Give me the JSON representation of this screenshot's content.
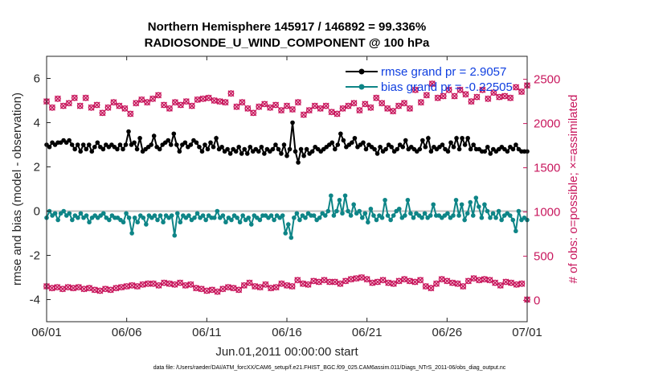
{
  "chart_data": {
    "type": "line",
    "title_line1": "Northern Hemisphere 145917 / 146892 = 99.336%",
    "title_line2": "RADIOSONDE_U_WIND_COMPONENT @ 100 hPa",
    "xlabel": "Jun.01,2011 00:00:00 start",
    "ylabel_left": "rmse and bias (model - observation)",
    "ylabel_right": "# of obs: o=possible; ×=assimilated",
    "footer": "data file: /Users/raeder/DAI/ATM_forcXX/CAM6_setup/f.e21.FHIST_BGC.f09_025.CAM6assim.011/Diags_NTrS_2011-06/obs_diag_output.nc",
    "x_ticks": [
      "06/01",
      "06/06",
      "06/11",
      "06/16",
      "06/21",
      "06/26",
      "07/01"
    ],
    "y_left_ticks": [
      "-4",
      "-2",
      "0",
      "2",
      "4",
      "6"
    ],
    "y_right_ticks": [
      "0",
      "500",
      "1000",
      "1500",
      "2000",
      "2500"
    ],
    "xlim_days": [
      0,
      30
    ],
    "ylim_left": [
      -5,
      7
    ],
    "ylim_right": [
      -240,
      2760
    ],
    "zero_line": 0,
    "series": [
      {
        "name": "rmse",
        "legend": "rmse grand pr = 2.9057",
        "color": "#000000",
        "axis": "left",
        "values": [
          3.0,
          2.9,
          3.1,
          3.0,
          3.1,
          3.1,
          3.2,
          3.1,
          3.2,
          3.0,
          2.8,
          3.0,
          2.7,
          3.0,
          2.8,
          3.0,
          2.7,
          2.9,
          3.1,
          2.9,
          2.8,
          3.0,
          2.9,
          3.0,
          2.9,
          2.8,
          3.0,
          2.8,
          3.0,
          3.6,
          3.0,
          3.1,
          2.8,
          3.3,
          2.7,
          2.8,
          2.9,
          3.0,
          3.4,
          2.9,
          2.8,
          3.0,
          3.1,
          3.2,
          3.0,
          3.5,
          3.0,
          2.7,
          3.0,
          3.1,
          2.9,
          3.0,
          3.2,
          3.1,
          2.9,
          2.7,
          3.0,
          2.8,
          3.1,
          2.9,
          3.3,
          2.8,
          2.9,
          2.7,
          2.8,
          2.6,
          2.8,
          2.7,
          2.9,
          2.6,
          2.8,
          2.6,
          2.9,
          2.7,
          2.8,
          2.7,
          2.9,
          2.6,
          2.8,
          2.7,
          2.8,
          3.0,
          2.8,
          2.6,
          3.0,
          2.5,
          2.8,
          4.0,
          2.7,
          2.2,
          2.8,
          2.5,
          2.8,
          2.6,
          2.7,
          2.9,
          2.8,
          2.7,
          2.8,
          2.9,
          3.0,
          3.1,
          2.8,
          3.0,
          3.5,
          3.2,
          2.9,
          3.0,
          3.1,
          3.3,
          2.9,
          3.0,
          3.1,
          2.8,
          3.0,
          2.9,
          2.8,
          2.6,
          2.9,
          2.7,
          2.8,
          3.0,
          2.9,
          2.7,
          2.8,
          3.0,
          2.9,
          3.2,
          2.8,
          2.9,
          2.8,
          2.7,
          2.8,
          3.2,
          2.9,
          3.3,
          2.7,
          2.9,
          2.8,
          2.9,
          3.0,
          2.8,
          2.7,
          3.1,
          2.9,
          3.3,
          2.8,
          3.3,
          3.0,
          3.3,
          2.8,
          3.0,
          2.8,
          2.8,
          2.7,
          2.7,
          2.9,
          2.6,
          2.8,
          2.7,
          2.8,
          2.9,
          2.8,
          2.7,
          2.9,
          2.8,
          3.0,
          2.8,
          2.7,
          2.7,
          2.7
        ]
      },
      {
        "name": "bias",
        "legend": "bias grand pr = -0.22505",
        "color": "#0e8587",
        "axis": "left",
        "values": [
          -0.3,
          0.0,
          -0.2,
          -0.1,
          -0.4,
          -0.1,
          0.0,
          -0.2,
          -0.1,
          -0.4,
          -0.2,
          -0.3,
          -0.1,
          -0.3,
          -0.2,
          -0.5,
          -0.3,
          -0.2,
          -0.3,
          -0.2,
          -0.1,
          -0.3,
          -0.4,
          -0.2,
          -0.3,
          -0.3,
          -0.4,
          -0.5,
          -0.1,
          -0.3,
          -1.0,
          -0.3,
          -0.5,
          -0.2,
          -0.3,
          -0.6,
          -0.2,
          -0.3,
          -0.2,
          -0.4,
          -0.2,
          -0.5,
          -0.2,
          -0.3,
          -0.2,
          -1.1,
          -0.1,
          -0.5,
          -0.2,
          -0.3,
          -0.2,
          -0.4,
          -0.3,
          -0.1,
          -0.3,
          -0.2,
          -0.4,
          -0.2,
          -0.3,
          -0.3,
          0.0,
          -0.3,
          -0.2,
          -0.5,
          -0.3,
          -0.4,
          -0.2,
          -0.3,
          -0.5,
          -0.2,
          -0.4,
          -0.3,
          -0.6,
          -0.2,
          -0.3,
          -0.4,
          -0.2,
          -0.2,
          -0.3,
          -0.2,
          -0.4,
          -0.2,
          -0.3,
          -0.2,
          -1.0,
          -0.6,
          -1.2,
          -0.3,
          -0.1,
          -0.4,
          -0.2,
          -0.3,
          -0.1,
          -0.2,
          -0.2,
          -0.4,
          -0.3,
          -0.1,
          -0.2,
          0.0,
          0.7,
          -0.2,
          0.0,
          0.5,
          -0.1,
          0.7,
          0.0,
          -0.2,
          0.3,
          -0.1,
          0.0,
          -0.3,
          -0.1,
          -0.5,
          0.1,
          -0.2,
          -0.4,
          -0.2,
          -0.3,
          0.5,
          -0.2,
          -0.4,
          -0.2,
          0.0,
          0.1,
          -0.3,
          -0.2,
          0.5,
          -0.1,
          -0.3,
          -0.1,
          -0.2,
          -0.3,
          -0.1,
          -0.3,
          -0.2,
          0.3,
          -0.2,
          -0.2,
          -0.3,
          -0.2,
          -0.1,
          -0.3,
          -0.2,
          0.5,
          -0.2,
          0.3,
          -0.4,
          -0.1,
          0.4,
          -0.2,
          0.6,
          0.2,
          -0.3,
          0.3,
          0.0,
          -0.3,
          -0.1,
          -0.3,
          0.0,
          -0.4,
          -0.2,
          -0.1,
          -0.2,
          -0.4,
          -0.9,
          0.0,
          -0.4,
          -0.3,
          -0.4
        ]
      },
      {
        "name": "obs_possible",
        "color": "#c8175d",
        "axis": "right",
        "values": [
          2250,
          2180,
          2280,
          2200,
          2230,
          2290,
          2200,
          2290,
          2180,
          2210,
          2120,
          2180,
          2240,
          2200,
          2170,
          2110,
          2230,
          2270,
          2240,
          2280,
          2320,
          2210,
          2170,
          2240,
          2210,
          2250,
          2200,
          2270,
          2280,
          2290,
          2260,
          2250,
          2240,
          2340,
          2190,
          2240,
          2170,
          2120,
          2190,
          2220,
          2180,
          2210,
          2150,
          2200,
          2160,
          2240,
          2100,
          2150,
          2200,
          2170,
          2200,
          2130,
          2110,
          2170,
          2200,
          2230,
          2150,
          2220,
          2180,
          2290,
          2230,
          2170,
          2140,
          2200,
          2230,
          2170,
          2380,
          2240,
          2320,
          2450,
          2290,
          2310,
          2380,
          2310,
          2380,
          2330,
          2250,
          2300,
          2380,
          2280,
          2350,
          2300,
          2310,
          2290,
          2410,
          2360,
          2430
        ]
      },
      {
        "name": "obs_assimilated",
        "color": "#c8175d",
        "axis": "right",
        "values": [
          160,
          140,
          150,
          130,
          150,
          140,
          150,
          130,
          140,
          120,
          110,
          130,
          120,
          140,
          150,
          160,
          170,
          160,
          180,
          190,
          190,
          170,
          200,
          190,
          180,
          200,
          170,
          180,
          140,
          130,
          110,
          120,
          100,
          130,
          150,
          140,
          120,
          170,
          200,
          160,
          150,
          180,
          140,
          150,
          190,
          170,
          160,
          230,
          190,
          180,
          220,
          210,
          230,
          210,
          210,
          190,
          220,
          240,
          250,
          260,
          240,
          200,
          210,
          230,
          200,
          190,
          220,
          240,
          220,
          210,
          230,
          160,
          140,
          190,
          240,
          220,
          200,
          190,
          160,
          220,
          250,
          230,
          240,
          230,
          200,
          170,
          210,
          200,
          180,
          190,
          10
        ]
      }
    ]
  }
}
